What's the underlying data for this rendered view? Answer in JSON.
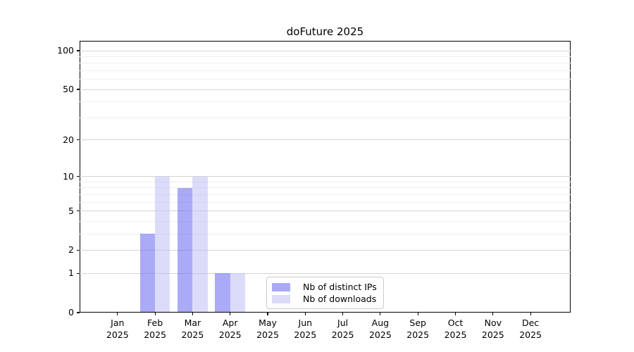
{
  "title": "doFuture 2025",
  "chart_data": {
    "type": "bar",
    "title": "doFuture 2025",
    "categories": [
      "Jan 2025",
      "Feb 2025",
      "Mar 2025",
      "Apr 2025",
      "May 2025",
      "Jun 2025",
      "Jul 2025",
      "Aug 2025",
      "Sep 2025",
      "Oct 2025",
      "Nov 2025",
      "Dec 2025"
    ],
    "series": [
      {
        "name": "Nb of distinct IPs",
        "color": "#a9a9f8",
        "fill": "rgba(106,106,240,0.57)",
        "values": [
          0,
          3,
          8,
          1,
          0,
          0,
          0,
          0,
          0,
          0,
          0,
          0
        ]
      },
      {
        "name": "Nb of downloads",
        "color": "#dcdcf9",
        "fill": "rgba(185,185,245,0.5)",
        "values": [
          0,
          10,
          10,
          1,
          0,
          0,
          0,
          0,
          0,
          0,
          0,
          0
        ]
      }
    ],
    "xlabel": "",
    "ylabel": "",
    "y_axis": {
      "scale": "log1p",
      "tick_labels": [
        0,
        1,
        2,
        5,
        10,
        20,
        50,
        100
      ],
      "minor_gridlines": [
        3,
        4,
        6,
        7,
        8,
        9,
        30,
        40,
        60,
        70,
        80,
        90
      ],
      "ylim": [
        0,
        119
      ]
    },
    "legend": {
      "position": "inside-bottom-center",
      "entries": [
        "Nb of distinct IPs",
        "Nb of downloads"
      ]
    },
    "grid": true,
    "colors": {
      "major_grid": "#d4d4d4",
      "minor_grid": "#efefef",
      "spine": "#000000",
      "text": "#000000",
      "background": "#ffffff"
    }
  }
}
